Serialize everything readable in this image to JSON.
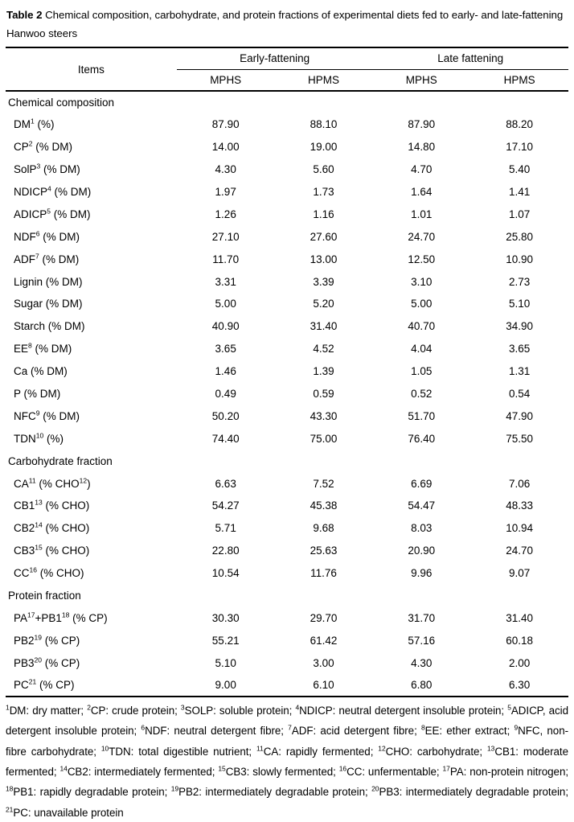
{
  "page": {
    "background": "#ffffff",
    "text_color": "#000000",
    "rule_color": "#000000"
  },
  "caption": {
    "label": "Table 2",
    "text": " Chemical composition, carbohydrate, and protein fractions of experimental diets fed to early- and late-fattening Hanwoo steers"
  },
  "table": {
    "items_header": "Items",
    "groups": [
      {
        "label": "Early-fattening",
        "subcols": [
          "MPHS",
          "HPMS"
        ]
      },
      {
        "label": "Late fattening",
        "subcols": [
          "MPHS",
          "HPMS"
        ]
      }
    ],
    "sections": [
      {
        "title": "Chemical composition",
        "rows": [
          {
            "label": [
              "DM",
              "^1",
              " (%)"
            ],
            "values": [
              "87.90",
              "88.10",
              "87.90",
              "88.20"
            ]
          },
          {
            "label": [
              "CP",
              "^2",
              " (% DM)"
            ],
            "values": [
              "14.00",
              "19.00",
              "14.80",
              "17.10"
            ]
          },
          {
            "label": [
              "SolP",
              "^3",
              " (% DM)"
            ],
            "values": [
              "4.30",
              "5.60",
              "4.70",
              "5.40"
            ]
          },
          {
            "label": [
              "NDICP",
              "^4",
              " (% DM)"
            ],
            "values": [
              "1.97",
              "1.73",
              "1.64",
              "1.41"
            ]
          },
          {
            "label": [
              "ADICP",
              "^5",
              " (% DM)"
            ],
            "values": [
              "1.26",
              "1.16",
              "1.01",
              "1.07"
            ]
          },
          {
            "label": [
              "NDF",
              "^6",
              " (% DM)"
            ],
            "values": [
              "27.10",
              "27.60",
              "24.70",
              "25.80"
            ]
          },
          {
            "label": [
              "ADF",
              "^7",
              " (% DM)"
            ],
            "values": [
              "11.70",
              "13.00",
              "12.50",
              "10.90"
            ]
          },
          {
            "label": [
              "Lignin (% DM)"
            ],
            "values": [
              "3.31",
              "3.39",
              "3.10",
              "2.73"
            ]
          },
          {
            "label": [
              "Sugar (% DM)"
            ],
            "values": [
              "5.00",
              "5.20",
              "5.00",
              "5.10"
            ]
          },
          {
            "label": [
              "Starch (% DM)"
            ],
            "values": [
              "40.90",
              "31.40",
              "40.70",
              "34.90"
            ]
          },
          {
            "label": [
              "EE",
              "^8",
              " (% DM)"
            ],
            "values": [
              "3.65",
              "4.52",
              "4.04",
              "3.65"
            ]
          },
          {
            "label": [
              "Ca (% DM)"
            ],
            "values": [
              "1.46",
              "1.39",
              "1.05",
              "1.31"
            ]
          },
          {
            "label": [
              "P (% DM)"
            ],
            "values": [
              "0.49",
              "0.59",
              "0.52",
              "0.54"
            ]
          },
          {
            "label": [
              "NFC",
              "^9",
              " (% DM)"
            ],
            "values": [
              "50.20",
              "43.30",
              "51.70",
              "47.90"
            ]
          },
          {
            "label": [
              "TDN",
              "^10",
              " (%)"
            ],
            "values": [
              "74.40",
              "75.00",
              "76.40",
              "75.50"
            ]
          }
        ]
      },
      {
        "title": "Carbohydrate fraction",
        "rows": [
          {
            "label": [
              "CA",
              "^11",
              " (% CHO",
              "^12",
              ")"
            ],
            "values": [
              "6.63",
              "7.52",
              "6.69",
              "7.06"
            ]
          },
          {
            "label": [
              "CB1",
              "^13",
              " (% CHO)"
            ],
            "values": [
              "54.27",
              "45.38",
              "54.47",
              "48.33"
            ]
          },
          {
            "label": [
              "CB2",
              "^14",
              " (% CHO)"
            ],
            "values": [
              "5.71",
              "9.68",
              "8.03",
              "10.94"
            ]
          },
          {
            "label": [
              "CB3",
              "^15",
              " (% CHO)"
            ],
            "values": [
              "22.80",
              "25.63",
              "20.90",
              "24.70"
            ]
          },
          {
            "label": [
              "CC",
              "^16",
              " (% CHO)"
            ],
            "values": [
              "10.54",
              "11.76",
              "9.96",
              "9.07"
            ]
          }
        ]
      },
      {
        "title": "Protein fraction",
        "rows": [
          {
            "label": [
              "PA",
              "^17",
              "+PB1",
              "^18",
              " (% CP)"
            ],
            "values": [
              "30.30",
              "29.70",
              "31.70",
              "31.40"
            ]
          },
          {
            "label": [
              "PB2",
              "^19",
              " (% CP)"
            ],
            "values": [
              "55.21",
              "61.42",
              "57.16",
              "60.18"
            ]
          },
          {
            "label": [
              "PB3",
              "^20",
              " (% CP)"
            ],
            "values": [
              "5.10",
              "3.00",
              "4.30",
              "2.00"
            ]
          },
          {
            "label": [
              "PC",
              "^21",
              " (% CP)"
            ],
            "values": [
              "9.00",
              "6.10",
              "6.80",
              "6.30"
            ]
          }
        ]
      }
    ]
  },
  "footnote": [
    "^1",
    "DM: dry matter; ",
    "^2",
    "CP: crude protein; ",
    "^3",
    "SOLP: soluble protein; ",
    "^4",
    "NDICP: neutral detergent insoluble protein; ",
    "^5",
    "ADICP, acid detergent insoluble protein; ",
    "^6",
    "NDF: neutral detergent fibre; ",
    "^7",
    "ADF: acid detergent fibre; ",
    "^8",
    "EE: ether extract; ",
    "^9",
    "NFC, non-fibre carbohydrate; ",
    "^10",
    "TDN: total digestible nutrient; ",
    "^11",
    "CA: rapidly fermented; ",
    "^12",
    "CHO: carbohydrate; ",
    "^13",
    "CB1: moderate fermented; ",
    "^14",
    "CB2: intermediately fermented; ",
    "^15",
    "CB3: slowly fermented; ",
    "^16",
    "CC: unfermentable; ",
    "^17",
    "PA: non-protein nitrogen; ",
    "^18",
    "PB1: rapidly degradable protein; ",
    "^19",
    "PB2: intermediately degradable protein; ",
    "^20",
    "PB3: intermediately degradable protein; ",
    "^21",
    "PC: unavailable protein"
  ]
}
